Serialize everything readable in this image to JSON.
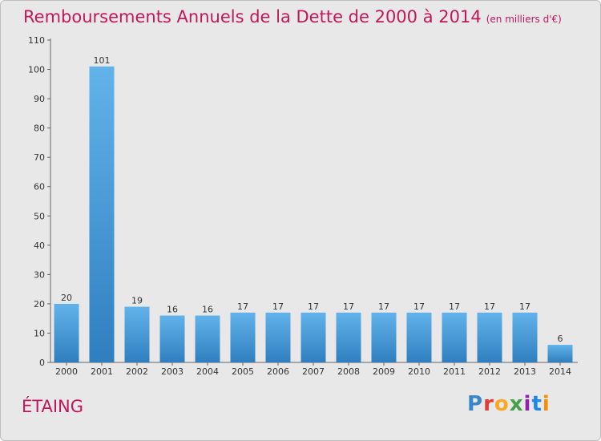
{
  "title": "Remboursements Annuels de la Dette de 2000 à 2014",
  "unit_label": "(en milliers d'€)",
  "commune": "ÉTAING",
  "logo": "Proxiti",
  "colors": {
    "title": "#c2185b",
    "bar_top": "#62b3ea",
    "bar_bottom": "#2f7fc0",
    "background": "#e8e8e8"
  },
  "chart_data": {
    "type": "bar",
    "categories": [
      "2000",
      "2001",
      "2002",
      "2003",
      "2004",
      "2005",
      "2006",
      "2007",
      "2008",
      "2009",
      "2010",
      "2011",
      "2012",
      "2013",
      "2014"
    ],
    "values": [
      20,
      101,
      19,
      16,
      16,
      17,
      17,
      17,
      17,
      17,
      17,
      17,
      17,
      17,
      6
    ],
    "title": "Remboursements Annuels de la Dette de 2000 à 2014",
    "ylim": [
      0,
      110
    ],
    "yticks": [
      0,
      10,
      20,
      30,
      40,
      50,
      60,
      70,
      80,
      90,
      100,
      110
    ],
    "grid": false,
    "data_labels": true
  }
}
